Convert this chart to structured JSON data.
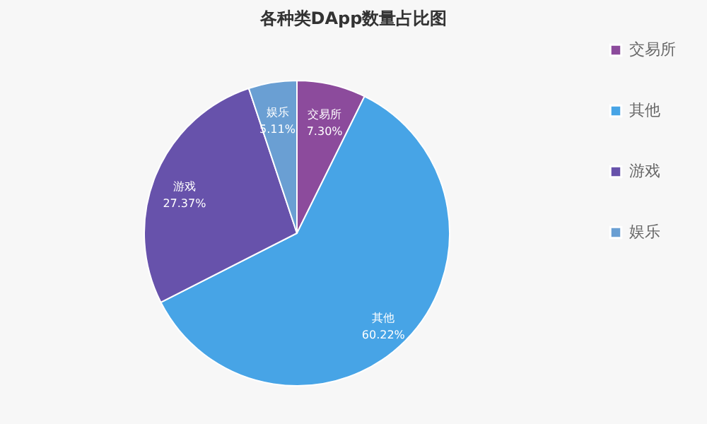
{
  "chart_data": {
    "type": "pie",
    "title": "各种类DApp数量占比图",
    "categories": [
      "交易所",
      "其他",
      "游戏",
      "娱乐"
    ],
    "values": [
      7.3,
      60.22,
      27.37,
      5.11
    ],
    "value_labels": [
      "7.30%",
      "60.22%",
      "27.37%",
      "5.11%"
    ],
    "colors": [
      "#8c4b9c",
      "#47a4e6",
      "#6752ab",
      "#6a9fd3"
    ],
    "legend": "right"
  }
}
